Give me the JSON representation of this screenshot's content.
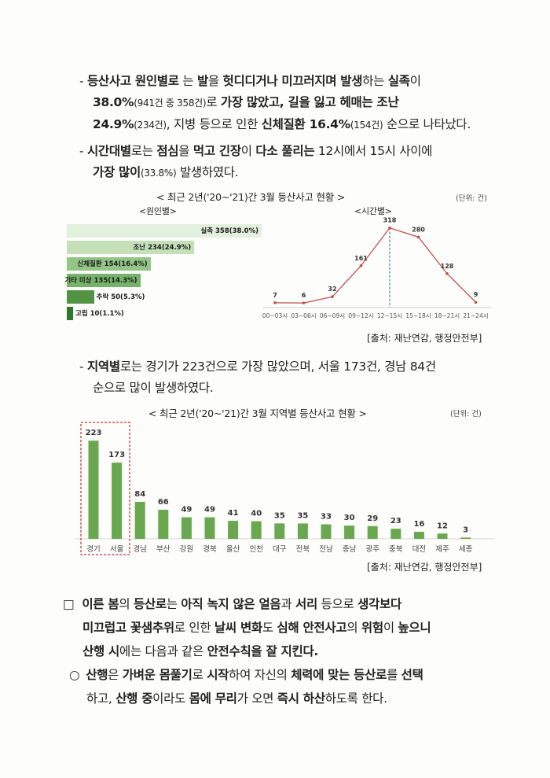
{
  "bullets": {
    "b1": {
      "dash": "-",
      "p1": "등산사고 원인별로",
      "p2": " 는 ",
      "p3": "발",
      "p4": "을 ",
      "p5": "헛디디거나 미끄러지며 발생",
      "p6": "하는 ",
      "p7": "실족",
      "p8": "이",
      "l2a": "38.0%",
      "l2b": "(941건 중 358건)",
      "l2c": "로 ",
      "l2d": "가장 많았고, 길을 잃고 헤매는 조난",
      "l3a": "24.9%",
      "l3b": "(234건)",
      "l3c": ", 지병 등으로 인한 ",
      "l3d": "신체질환 16.4%",
      "l3e": "(154건)",
      "l3f": " 순으로 나타났다."
    },
    "b2": {
      "dash": "-",
      "p1": "시간대별",
      "p2": "로는 ",
      "p3": "점심",
      "p4": "을 ",
      "p5": "먹고 긴장",
      "p6": "이 ",
      "p7": "다소 풀리는",
      "p8": " 12시에서 15시 사이에",
      "l2a": "가장 많이",
      "l2b": "(33.8%)",
      "l2c": " 발생하였다."
    },
    "b3": {
      "dash": "-",
      "p1": "지역별",
      "p2": "로는 경기가 223건으로 가장 많았으며, 서울 173건, 경남 84건",
      "l2": "순으로 많이 발생하였다."
    }
  },
  "chart1": {
    "title": "< 최근 2년('20~'21)간 3월 등산사고 현황 >",
    "unit": "(단위: 건)",
    "cause_subtitle": "<원인별>",
    "time_subtitle": "<시간별>",
    "source": "[출처: 재난연감, 행정안전부]"
  },
  "chart2": {
    "title": "< 최근 2년('20~'21)간 3월 지역별 등산사고 현황 >",
    "unit": "(단위: 건)",
    "source": "[출처: 재난연감, 행정안전부]"
  },
  "chart_data": [
    {
      "type": "bar",
      "orientation": "horizontal",
      "categories": [
        "실족",
        "조난",
        "신체질환",
        "기타 미상",
        "추락",
        "고립"
      ],
      "values": [
        358,
        234,
        154,
        135,
        50,
        10
      ],
      "labels": [
        "실족 358(38.0%)",
        "조난 234(24.9%)",
        "신체질환 154(16.4%)",
        "기타 미상 135(14.3%)",
        "추락 50(5.3%)",
        "고립 10(1.1%)"
      ],
      "colors": [
        "#e3f0dd",
        "#c3e0b9",
        "#93c586",
        "#76b36a",
        "#4f9343",
        "#2f7a2a"
      ]
    },
    {
      "type": "line",
      "x": [
        "00~03시",
        "03~06시",
        "06~09시",
        "09~12시",
        "12~15시",
        "15~18시",
        "18~21시",
        "21~24시"
      ],
      "values": [
        7,
        6,
        32,
        161,
        318,
        280,
        128,
        9
      ],
      "color": "#c0504d",
      "ylim": [
        0,
        340
      ]
    },
    {
      "type": "bar",
      "categories": [
        "경기",
        "서울",
        "경남",
        "부산",
        "강원",
        "경북",
        "울산",
        "인천",
        "대구",
        "전북",
        "전남",
        "충남",
        "광주",
        "충북",
        "대전",
        "제주",
        "세종"
      ],
      "values": [
        223,
        173,
        84,
        66,
        49,
        49,
        41,
        40,
        35,
        35,
        33,
        30,
        29,
        23,
        16,
        12,
        3
      ],
      "color": "#6aa84f",
      "ylim": [
        0,
        240
      ]
    }
  ],
  "footer": {
    "box_mark": "□",
    "box_l1a": "이른 봄",
    "box_l1b": "의 ",
    "box_l1c": "등산로",
    "box_l1d": "는 ",
    "box_l1e": "아직 녹지 않은 얼음",
    "box_l1f": "과 ",
    "box_l1g": "서리",
    "box_l1h": " 등으로 ",
    "box_l1i": "생각보다",
    "box_l2a": "미끄럽고 꽃샘추위",
    "box_l2b": "로 인한 ",
    "box_l2c": "날씨 변화",
    "box_l2d": "도 ",
    "box_l2e": "심해 안전사고",
    "box_l2f": "의 ",
    "box_l2g": "위험",
    "box_l2h": "이 ",
    "box_l2i": "높으니",
    "box_l3a": "산행 시",
    "box_l3b": "에는 다음과 같은 ",
    "box_l3c": "안전수칙을 잘 지킨다.",
    "circle_mark": "○",
    "c_l1a": "산행",
    "c_l1b": "은 ",
    "c_l1c": "가벼운 몸풀기",
    "c_l1d": "로 ",
    "c_l1e": "시작",
    "c_l1f": "하여 자신의 ",
    "c_l1g": "체력에 맞는 등산로",
    "c_l1h": "를 ",
    "c_l1i": "선택",
    "c_l2a": "하고, ",
    "c_l2b": "산행 중",
    "c_l2c": "이라도 ",
    "c_l2d": "몸에 무리",
    "c_l2e": "가 오면 ",
    "c_l2f": "즉시 하산",
    "c_l2g": "하도록 한다."
  }
}
